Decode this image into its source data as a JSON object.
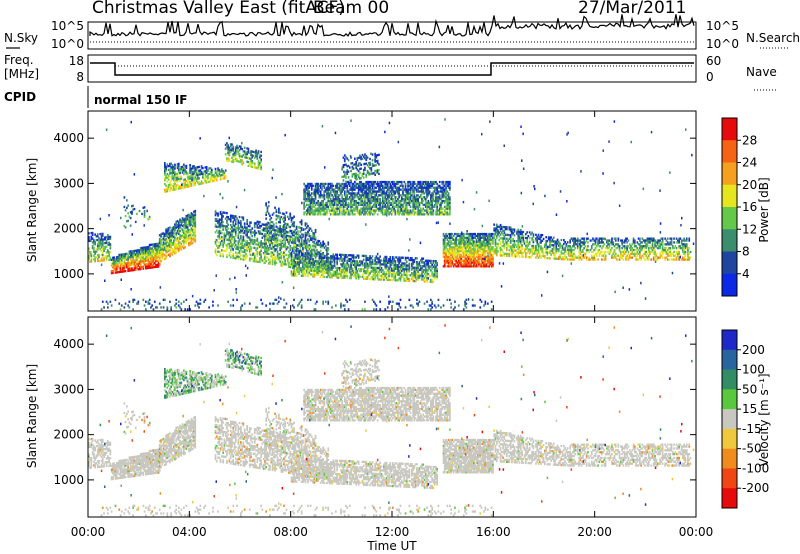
{
  "header": {
    "station": "Christmas Valley East (fitACF)",
    "beam": "Beam 00",
    "date": "27/Mar/2011"
  },
  "side_labels": {
    "nsky": "N.Sky",
    "nsearch": "N.Search",
    "freq_line1": "Freq.",
    "freq_line2": "[MHz]",
    "nave": "Nave",
    "cpid": "CPID",
    "cpid_value": "normal 150 IF"
  },
  "noise_panel": {
    "ytick_top": "10^5",
    "ytick_bottom": "10^0",
    "right_top": "10^5",
    "right_bottom": "10^0"
  },
  "freq_panel": {
    "ytick_top": "18",
    "ytick_bottom": "8",
    "right_top": "60",
    "right_bottom": "0"
  },
  "chart_data": [
    {
      "type": "heatmap",
      "name": "power",
      "ylabel": "Slant Range [km]",
      "yticks": [
        "1000",
        "2000",
        "3000",
        "4000"
      ],
      "colorbar": {
        "label": "Power [dB]",
        "ticks": [
          "4",
          "8",
          "12",
          "16",
          "20",
          "24",
          "28"
        ],
        "colors": [
          "#0a28e6",
          "#1e46a0",
          "#3c8c6e",
          "#64c84a",
          "#e6e61e",
          "#f5a01e",
          "#f56414",
          "#e60a0a"
        ]
      }
    },
    {
      "type": "heatmap",
      "name": "velocity",
      "ylabel": "Slant Range [km]",
      "yticks": [
        "1000",
        "2000",
        "3000",
        "4000"
      ],
      "xlabel": "Time UT",
      "xticks": [
        "00:00",
        "04:00",
        "08:00",
        "12:00",
        "16:00",
        "20:00",
        "00:00"
      ],
      "colorbar": {
        "label": "Velocity [m s⁻¹]",
        "ticks": [
          "200",
          "100",
          "50",
          "15",
          "-15",
          "-50",
          "-100",
          "-200"
        ],
        "colors": [
          "#1e28c8",
          "#2864a0",
          "#328c64",
          "#5ac83c",
          "#c8c8c0",
          "#f0c83c",
          "#f08c1e",
          "#f04614",
          "#e60a0a"
        ]
      }
    }
  ]
}
